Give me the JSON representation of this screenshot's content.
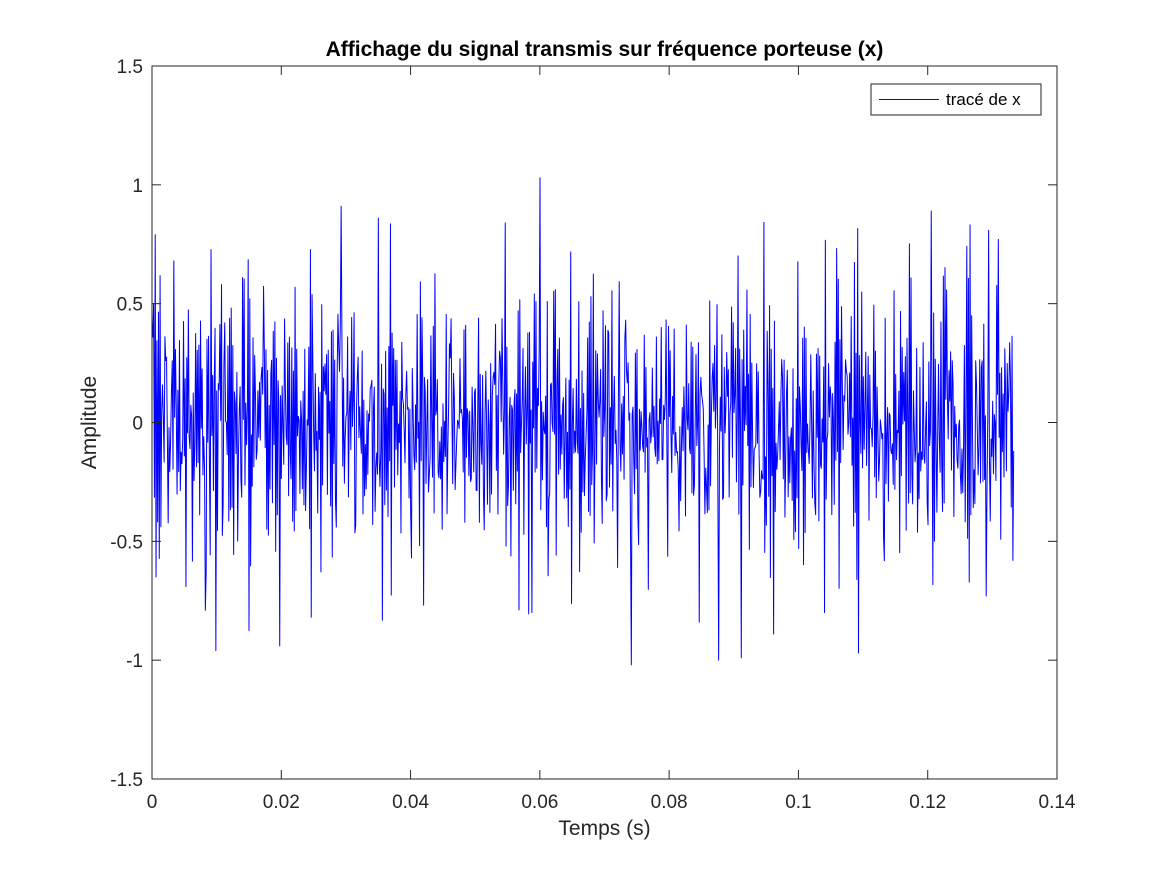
{
  "chart_data": {
    "type": "line",
    "title": "Affichage du signal transmis sur fréquence porteuse (x)",
    "xlabel": "Temps (s)",
    "ylabel": "Amplitude",
    "xlim": [
      0,
      0.14
    ],
    "ylim": [
      -1.5,
      1.5
    ],
    "xticks": [
      0,
      0.02,
      0.04,
      0.06,
      0.08,
      0.1,
      0.12,
      0.14
    ],
    "xtick_labels": [
      "0",
      "0.02",
      "0.04",
      "0.06",
      "0.08",
      "0.1",
      "0.12",
      "0.14"
    ],
    "yticks": [
      -1.5,
      -1,
      -0.5,
      0,
      0.5,
      1,
      1.5
    ],
    "ytick_labels": [
      "-1.5",
      "-1",
      "-0.5",
      "0",
      "0.5",
      "1",
      "1.5"
    ],
    "grid": false,
    "legend_position": "top-right",
    "x_range": [
      0,
      0.1333
    ],
    "series": [
      {
        "name": "tracé de x",
        "color": "#0000ff",
        "y_range": [
          -1.02,
          1.03
        ],
        "samples": 1067,
        "seed": 20240611,
        "peaks": [
          {
            "x": 0.0005,
            "y": 0.79
          },
          {
            "x": 0.0034,
            "y": 0.68
          },
          {
            "x": 0.0052,
            "y": -0.69
          },
          {
            "x": 0.0082,
            "y": -0.79
          },
          {
            "x": 0.0099,
            "y": -0.96
          },
          {
            "x": 0.0197,
            "y": -0.94
          },
          {
            "x": 0.0293,
            "y": 0.91
          },
          {
            "x": 0.0547,
            "y": 0.84
          },
          {
            "x": 0.0588,
            "y": -0.8
          },
          {
            "x": 0.06,
            "y": 1.03
          },
          {
            "x": 0.0742,
            "y": -1.02
          },
          {
            "x": 0.0846,
            "y": -0.84
          },
          {
            "x": 0.0877,
            "y": -1.0
          },
          {
            "x": 0.0912,
            "y": -0.99
          },
          {
            "x": 0.0961,
            "y": -0.89
          },
          {
            "x": 0.1093,
            "y": -0.97
          },
          {
            "x": 0.1205,
            "y": 0.89
          },
          {
            "x": 0.1309,
            "y": 0.77
          },
          {
            "x": 0.129,
            "y": -0.73
          }
        ]
      }
    ]
  }
}
